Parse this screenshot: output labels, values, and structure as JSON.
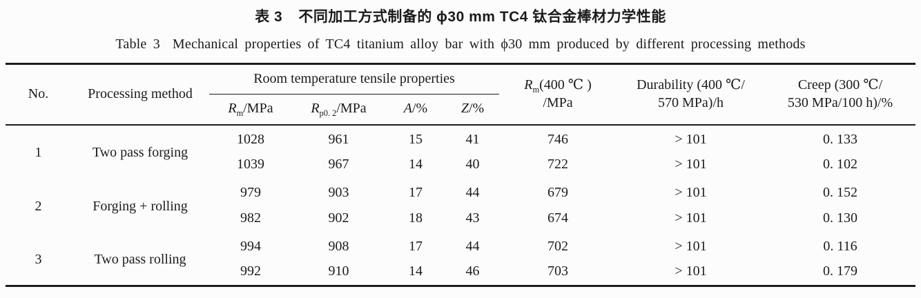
{
  "page": {
    "background": "#fcfcfc",
    "text_color": "#1b1b1b",
    "rule_color": "#1c1c1c"
  },
  "title": {
    "zh": {
      "label": "表 3",
      "text": "不同加工方式制备的 ϕ30 mm TC4 钛合金棒材力学性能"
    },
    "en": {
      "label": "Table 3",
      "text": "Mechanical properties of TC4 titanium alloy bar with ϕ30 mm produced by different processing methods"
    }
  },
  "table": {
    "header": {
      "no": "No.",
      "method": "Processing method",
      "group_tensile": "Room temperature tensile properties",
      "rm_rt": {
        "sym": "R",
        "sub": "m",
        "unit": "/MPa"
      },
      "rp02": {
        "sym": "R",
        "sub": "p0. 2",
        "unit": "/MPa"
      },
      "a": {
        "sym": "A",
        "unit": "/%"
      },
      "z": {
        "sym": "Z",
        "unit": "/%"
      },
      "rm400": {
        "sym": "R",
        "sub": "m",
        "rest": "(400 ℃ )",
        "line2": "/MPa"
      },
      "durability": {
        "line1": "Durability (400 ℃/",
        "line2": "570 MPa)/h"
      },
      "creep": {
        "line1": "Creep (300 ℃/",
        "line2": "530 MPa/100 h)/%"
      }
    },
    "rows": [
      {
        "no": "1",
        "method": "Two pass forging",
        "sub": [
          [
            "1028",
            "961",
            "15",
            "41",
            "746",
            "> 101",
            "0. 133"
          ],
          [
            "1039",
            "967",
            "14",
            "40",
            "722",
            "> 101",
            "0. 102"
          ]
        ]
      },
      {
        "no": "2",
        "method": "Forging + rolling",
        "sub": [
          [
            "979",
            "903",
            "17",
            "44",
            "679",
            "> 101",
            "0. 152"
          ],
          [
            "982",
            "902",
            "18",
            "43",
            "674",
            "> 101",
            "0. 130"
          ]
        ]
      },
      {
        "no": "3",
        "method": "Two pass rolling",
        "sub": [
          [
            "994",
            "908",
            "17",
            "44",
            "702",
            "> 101",
            "0. 116"
          ],
          [
            "992",
            "910",
            "14",
            "46",
            "703",
            "> 101",
            "0. 179"
          ]
        ]
      }
    ]
  }
}
